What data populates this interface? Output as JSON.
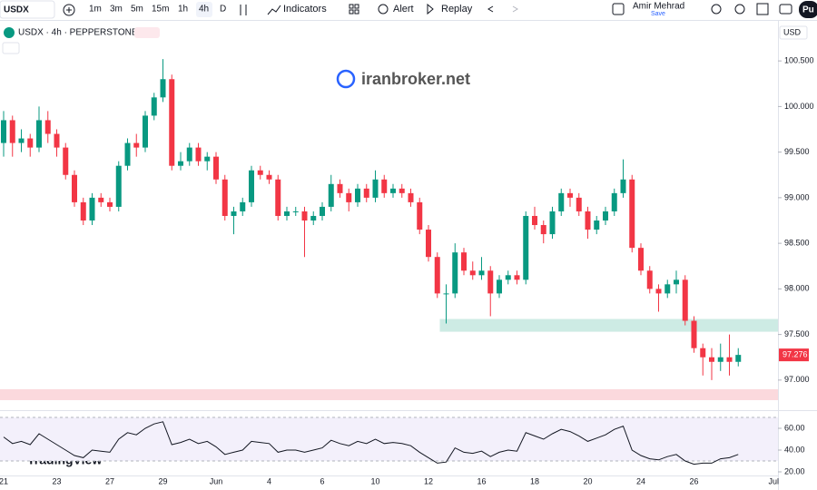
{
  "toolbar": {
    "symbol": "USDX",
    "intervals": [
      "1m",
      "3m",
      "5m",
      "15m",
      "1h",
      "4h",
      "D"
    ],
    "active_interval": 5,
    "buttons": [
      "Indicators",
      "Alert",
      "Replay"
    ],
    "user": "Amir Mehrad",
    "save": "Save",
    "publish": "Pu"
  },
  "chart_data": {
    "type": "candlestick",
    "title": "USDX · 4h · PEPPERSTONE",
    "currency": "USD",
    "watermark": "iranbroker.net",
    "brand": "TradingView",
    "up_color": "#089981",
    "down_color": "#f23645",
    "grid": false,
    "ylim": [
      96.7,
      100.8
    ],
    "yticks": [
      {
        "value": 100.5,
        "label": "100.500"
      },
      {
        "value": 100,
        "label": "100.000"
      },
      {
        "value": 99.5,
        "label": "99.500"
      },
      {
        "value": 99,
        "label": "99.000"
      },
      {
        "value": 98.5,
        "label": "98.500"
      },
      {
        "value": 98,
        "label": "98.000"
      },
      {
        "value": 97.5,
        "label": "97.500"
      },
      {
        "value": 97,
        "label": "97.000"
      }
    ],
    "xticks": [
      {
        "index": 0,
        "label": "21"
      },
      {
        "index": 6,
        "label": "23"
      },
      {
        "index": 12,
        "label": "27"
      },
      {
        "index": 18,
        "label": "29"
      },
      {
        "index": 24,
        "label": "Jun"
      },
      {
        "index": 30,
        "label": "4"
      },
      {
        "index": 36,
        "label": "6"
      },
      {
        "index": 42,
        "label": "10"
      },
      {
        "index": 48,
        "label": "12"
      },
      {
        "index": 54,
        "label": "16"
      },
      {
        "index": 60,
        "label": "18"
      },
      {
        "index": 66,
        "label": "20"
      },
      {
        "index": 72,
        "label": "24"
      },
      {
        "index": 78,
        "label": "26"
      },
      {
        "index": 87,
        "label": "Jul"
      }
    ],
    "candles": [
      [
        99.6,
        99.95,
        99.45,
        99.85
      ],
      [
        99.85,
        99.9,
        99.45,
        99.6
      ],
      [
        99.6,
        99.75,
        99.5,
        99.65
      ],
      [
        99.65,
        99.7,
        99.45,
        99.55
      ],
      [
        99.55,
        100.0,
        99.5,
        99.85
      ],
      [
        99.85,
        99.95,
        99.6,
        99.7
      ],
      [
        99.7,
        99.75,
        99.45,
        99.55
      ],
      [
        99.55,
        99.6,
        99.2,
        99.25
      ],
      [
        99.25,
        99.3,
        98.9,
        98.95
      ],
      [
        98.95,
        99.0,
        98.7,
        98.75
      ],
      [
        98.75,
        99.05,
        98.7,
        99.0
      ],
      [
        99.0,
        99.05,
        98.9,
        98.95
      ],
      [
        98.95,
        99.0,
        98.85,
        98.9
      ],
      [
        98.9,
        99.4,
        98.85,
        99.35
      ],
      [
        99.35,
        99.65,
        99.3,
        99.6
      ],
      [
        99.6,
        99.7,
        99.45,
        99.55
      ],
      [
        99.55,
        99.95,
        99.5,
        99.9
      ],
      [
        99.9,
        100.15,
        99.85,
        100.1
      ],
      [
        100.1,
        100.52,
        100.05,
        100.3
      ],
      [
        100.3,
        100.35,
        99.3,
        99.35
      ],
      [
        99.35,
        99.5,
        99.3,
        99.4
      ],
      [
        99.4,
        99.6,
        99.35,
        99.55
      ],
      [
        99.55,
        99.6,
        99.35,
        99.4
      ],
      [
        99.4,
        99.5,
        99.3,
        99.45
      ],
      [
        99.45,
        99.5,
        99.15,
        99.2
      ],
      [
        99.2,
        99.25,
        98.75,
        98.8
      ],
      [
        98.8,
        98.9,
        98.6,
        98.85
      ],
      [
        98.85,
        99.0,
        98.8,
        98.95
      ],
      [
        98.95,
        99.35,
        98.9,
        99.3
      ],
      [
        99.3,
        99.35,
        99.2,
        99.25
      ],
      [
        99.25,
        99.3,
        99.15,
        99.2
      ],
      [
        99.2,
        99.25,
        98.75,
        98.8
      ],
      [
        98.8,
        98.9,
        98.75,
        98.85
      ],
      [
        98.85,
        98.9,
        98.8,
        98.85
      ],
      [
        98.85,
        98.9,
        98.35,
        98.75
      ],
      [
        98.75,
        98.85,
        98.7,
        98.8
      ],
      [
        98.8,
        98.95,
        98.75,
        98.9
      ],
      [
        98.9,
        99.25,
        98.85,
        99.15
      ],
      [
        99.15,
        99.2,
        99.0,
        99.05
      ],
      [
        99.05,
        99.1,
        98.85,
        98.95
      ],
      [
        98.95,
        99.15,
        98.9,
        99.1
      ],
      [
        99.1,
        99.15,
        98.95,
        99.0
      ],
      [
        99.0,
        99.3,
        98.95,
        99.2
      ],
      [
        99.2,
        99.25,
        99.0,
        99.05
      ],
      [
        99.05,
        99.15,
        99.0,
        99.1
      ],
      [
        99.1,
        99.15,
        99.0,
        99.05
      ],
      [
        99.05,
        99.1,
        98.9,
        98.95
      ],
      [
        98.95,
        99.0,
        98.6,
        98.65
      ],
      [
        98.65,
        98.7,
        98.3,
        98.35
      ],
      [
        98.35,
        98.4,
        97.9,
        97.95
      ],
      [
        97.95,
        98.05,
        97.62,
        97.95
      ],
      [
        97.95,
        98.5,
        97.9,
        98.4
      ],
      [
        98.4,
        98.45,
        98.15,
        98.2
      ],
      [
        98.2,
        98.3,
        98.1,
        98.15
      ],
      [
        98.15,
        98.35,
        98.1,
        98.2
      ],
      [
        98.2,
        98.25,
        97.7,
        97.95
      ],
      [
        97.95,
        98.15,
        97.9,
        98.1
      ],
      [
        98.1,
        98.2,
        98.05,
        98.15
      ],
      [
        98.15,
        98.2,
        98.05,
        98.1
      ],
      [
        98.1,
        98.85,
        98.05,
        98.8
      ],
      [
        98.8,
        98.9,
        98.65,
        98.7
      ],
      [
        98.7,
        98.75,
        98.5,
        98.6
      ],
      [
        98.6,
        98.9,
        98.55,
        98.85
      ],
      [
        98.85,
        99.1,
        98.8,
        99.05
      ],
      [
        99.05,
        99.1,
        98.9,
        99.0
      ],
      [
        99.0,
        99.05,
        98.8,
        98.85
      ],
      [
        98.85,
        98.9,
        98.55,
        98.65
      ],
      [
        98.65,
        98.8,
        98.6,
        98.75
      ],
      [
        98.75,
        98.9,
        98.7,
        98.85
      ],
      [
        98.85,
        99.1,
        98.8,
        99.05
      ],
      [
        99.05,
        99.42,
        99.0,
        99.2
      ],
      [
        99.2,
        99.25,
        98.4,
        98.45
      ],
      [
        98.45,
        98.5,
        98.15,
        98.2
      ],
      [
        98.2,
        98.25,
        97.95,
        98.0
      ],
      [
        98.0,
        98.05,
        97.75,
        97.95
      ],
      [
        97.95,
        98.1,
        97.9,
        98.05
      ],
      [
        98.05,
        98.2,
        97.95,
        98.1
      ],
      [
        98.1,
        98.15,
        97.6,
        97.65
      ],
      [
        97.65,
        97.7,
        97.3,
        97.35
      ],
      [
        97.35,
        97.4,
        97.05,
        97.25
      ],
      [
        97.25,
        97.35,
        97.0,
        97.2
      ],
      [
        97.2,
        97.4,
        97.1,
        97.25
      ],
      [
        97.25,
        97.5,
        97.05,
        97.2
      ],
      [
        97.2,
        97.35,
        97.15,
        97.276
      ]
    ],
    "zones": [
      {
        "start": 50,
        "top": 97.67,
        "bottom": 97.53,
        "color": "#cdebe4"
      },
      {
        "start": 0,
        "top": 96.9,
        "bottom": 96.78,
        "color": "#fbd9dd"
      }
    ],
    "rsi": {
      "color": "#131722",
      "band_color": "#f3f0fb",
      "ylim": [
        15,
        75
      ],
      "band": [
        30,
        70
      ],
      "yticks": [
        {
          "value": 60,
          "label": "60.00"
        },
        {
          "value": 40,
          "label": "40.00"
        },
        {
          "value": 20,
          "label": "20.00"
        }
      ],
      "values": [
        52,
        46,
        48,
        45,
        55,
        50,
        45,
        40,
        35,
        33,
        40,
        39,
        38,
        50,
        56,
        54,
        60,
        64,
        66,
        45,
        47,
        50,
        46,
        48,
        43,
        36,
        38,
        40,
        48,
        47,
        46,
        38,
        40,
        40,
        38,
        40,
        42,
        49,
        46,
        44,
        48,
        46,
        50,
        46,
        47,
        46,
        44,
        38,
        33,
        28,
        29,
        42,
        38,
        37,
        39,
        34,
        38,
        40,
        39,
        56,
        53,
        50,
        55,
        59,
        57,
        53,
        48,
        51,
        54,
        59,
        62,
        40,
        35,
        32,
        31,
        34,
        36,
        30,
        27,
        28,
        28,
        32,
        33,
        36
      ]
    }
  }
}
